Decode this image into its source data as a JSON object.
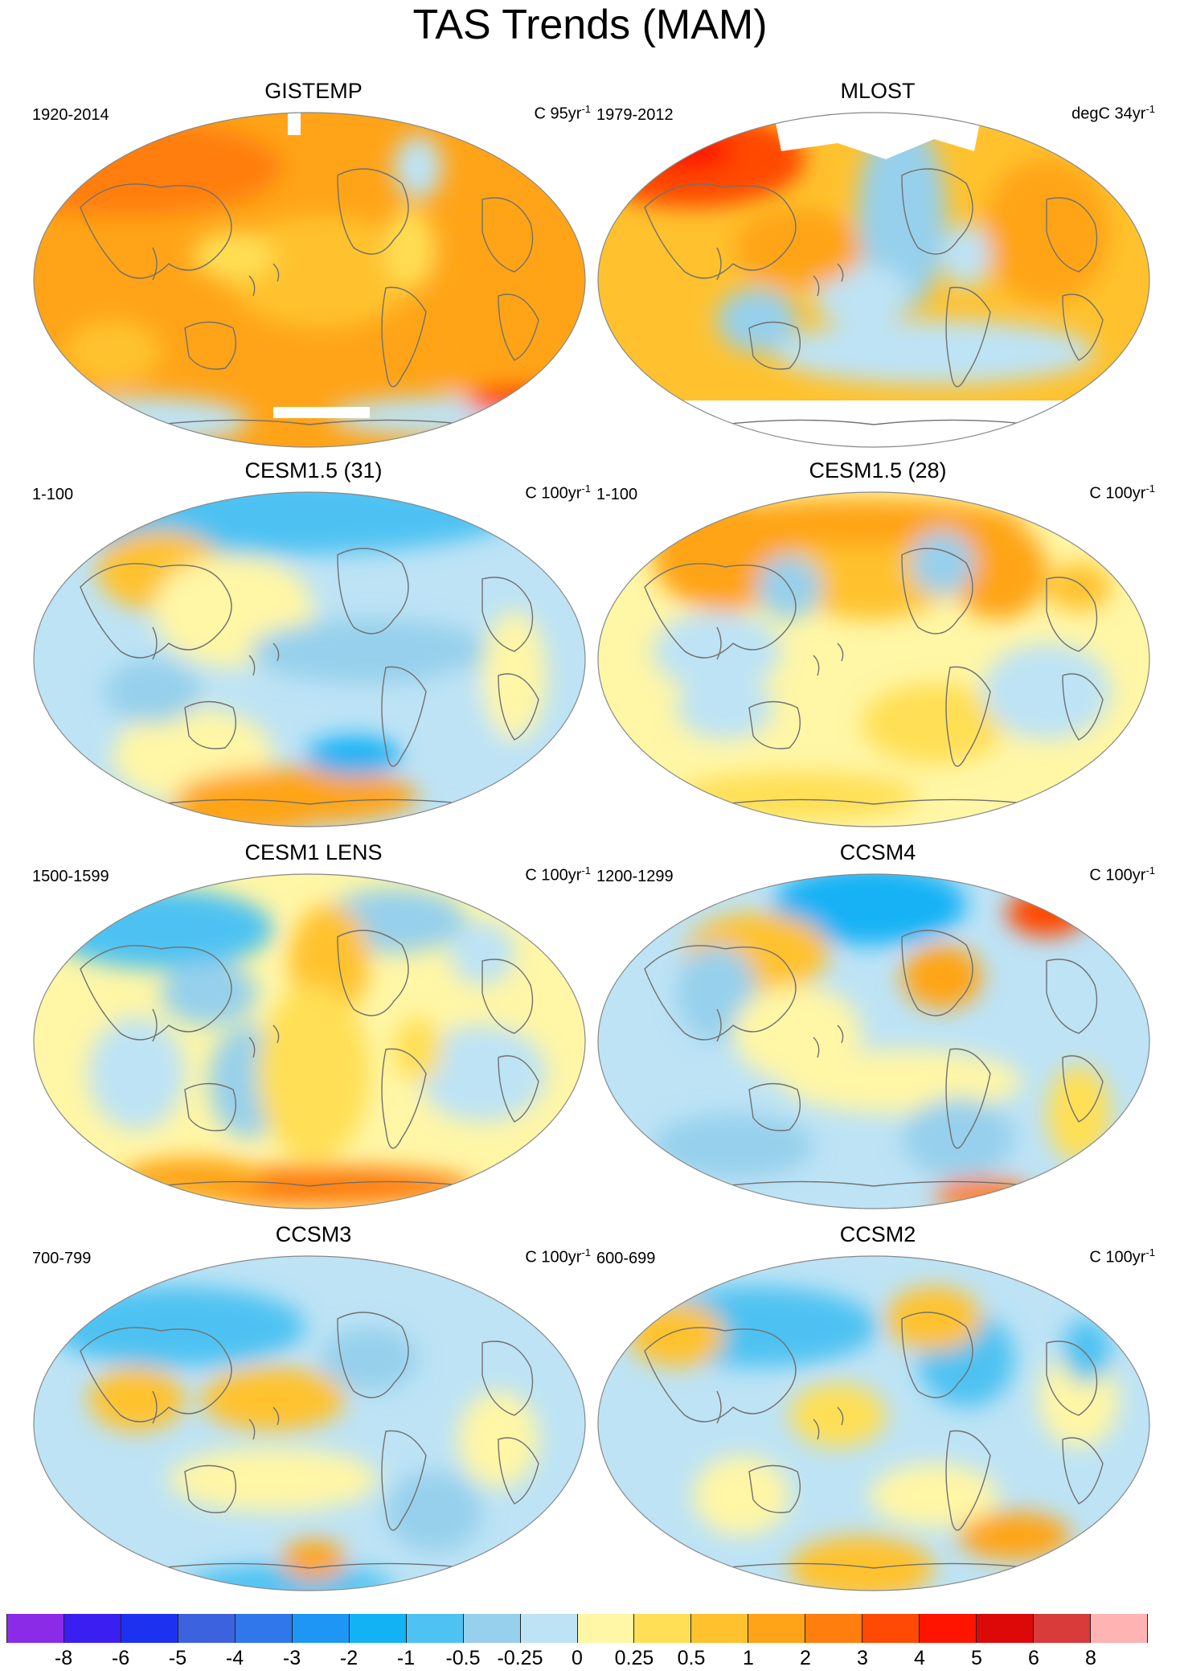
{
  "title": "TAS Trends (MAM)",
  "panels": [
    {
      "name": "GISTEMP",
      "period": "1920-2014",
      "units": "C 95yr",
      "exp": "-1",
      "pattern": "gistemp"
    },
    {
      "name": "MLOST",
      "period": "1979-2012",
      "units": "degC 34yr",
      "exp": "-1",
      "pattern": "mlost"
    },
    {
      "name": "CESM1.5 (31)",
      "period": "1-100",
      "units": "C 100yr",
      "exp": "-1",
      "pattern": "cesm15_31"
    },
    {
      "name": "CESM1.5 (28)",
      "period": "1-100",
      "units": "C 100yr",
      "exp": "-1",
      "pattern": "cesm15_28"
    },
    {
      "name": "CESM1 LENS",
      "period": "1500-1599",
      "units": "C 100yr",
      "exp": "-1",
      "pattern": "lens"
    },
    {
      "name": "CCSM4",
      "period": "1200-1299",
      "units": "C 100yr",
      "exp": "-1",
      "pattern": "ccsm4"
    },
    {
      "name": "CCSM3",
      "period": "700-799",
      "units": "C 100yr",
      "exp": "-1",
      "pattern": "ccsm3"
    },
    {
      "name": "CCSM2",
      "period": "600-699",
      "units": "C 100yr",
      "exp": "-1",
      "pattern": "ccsm2"
    }
  ],
  "colorbar": {
    "labels": [
      "-8",
      "-6",
      "-5",
      "-4",
      "-3",
      "-2",
      "-1",
      "-0.5",
      "-0.25",
      "0",
      "0.25",
      "0.5",
      "1",
      "2",
      "3",
      "4",
      "5",
      "6",
      "8"
    ],
    "colors": [
      "#8b2be8",
      "#3a1ef2",
      "#1c32f0",
      "#3d62e0",
      "#2f77ea",
      "#1e96f5",
      "#12b2f5",
      "#4ec2f2",
      "#96d0ec",
      "#bde3f5",
      "#fff6a6",
      "#ffdf55",
      "#ffc22e",
      "#ffa418",
      "#ff7e0e",
      "#ff4a06",
      "#ff1400",
      "#dd0808",
      "#d93a3a",
      "#ffb3b3"
    ]
  },
  "map_style": {
    "land_outline": "#707070",
    "no_data": "#ffffff",
    "border": "#888888"
  }
}
